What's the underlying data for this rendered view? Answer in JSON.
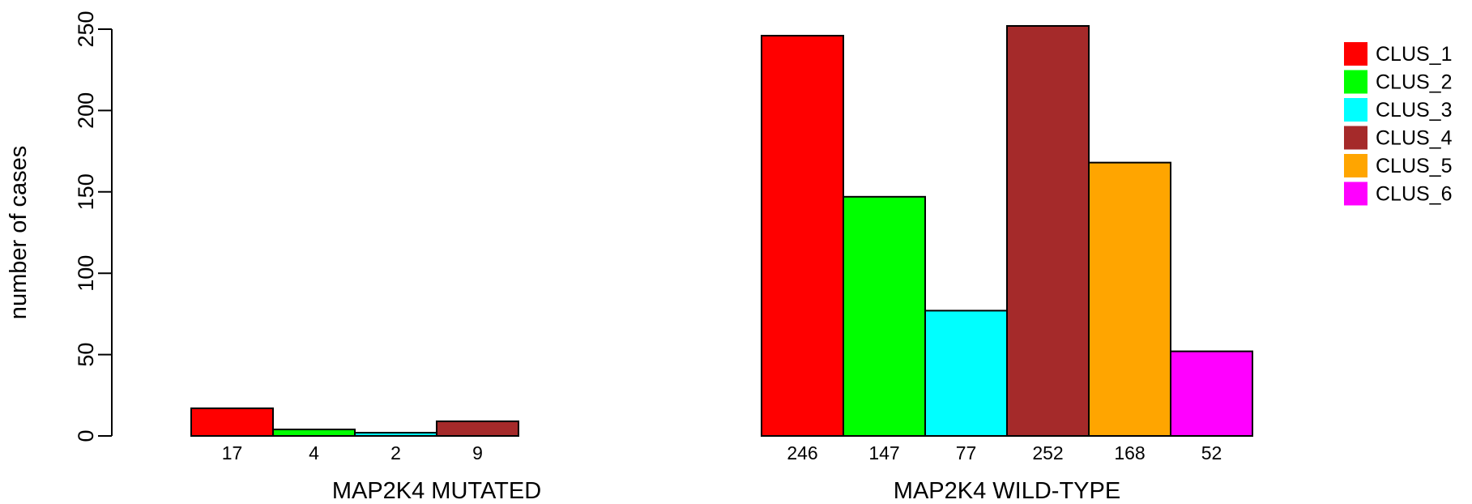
{
  "chart_data": {
    "type": "bar",
    "ylabel": "number of cases",
    "ylim": [
      0,
      250
    ],
    "yticks": [
      0,
      50,
      100,
      150,
      200,
      250
    ],
    "groups": [
      {
        "name": "MAP2K4 MUTATED",
        "values": [
          17,
          4,
          2,
          9,
          0,
          0
        ],
        "value_labels": [
          "17",
          "4",
          "2",
          "9",
          "",
          ""
        ]
      },
      {
        "name": "MAP2K4 WILD-TYPE",
        "values": [
          246,
          147,
          77,
          252,
          168,
          52
        ],
        "value_labels": [
          "246",
          "147",
          "77",
          "252",
          "168",
          "52"
        ]
      }
    ],
    "series": [
      {
        "name": "CLUS_1",
        "color": "#ff0000"
      },
      {
        "name": "CLUS_2",
        "color": "#00ff00"
      },
      {
        "name": "CLUS_3",
        "color": "#00ffff"
      },
      {
        "name": "CLUS_4",
        "color": "#a52a2a"
      },
      {
        "name": "CLUS_5",
        "color": "#ffa500"
      },
      {
        "name": "CLUS_6",
        "color": "#ff00ff"
      }
    ],
    "legend_position": "top-right",
    "grid": false
  }
}
